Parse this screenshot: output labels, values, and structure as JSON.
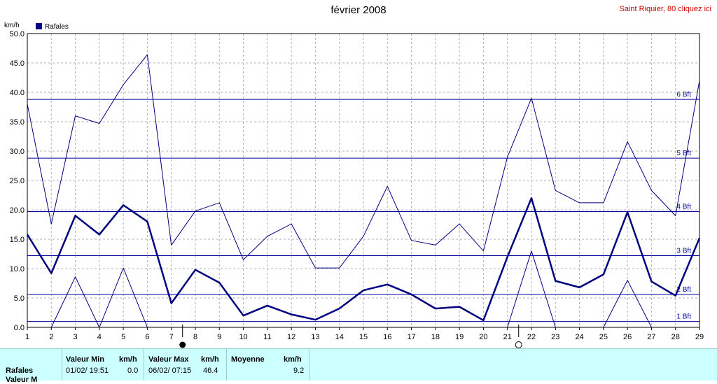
{
  "header": {
    "title": "février 2008",
    "station_link": "Saint Riquier, 80 cliquez ici"
  },
  "chart_data": {
    "type": "line",
    "ylabel": "km/h",
    "ylim": [
      0,
      50
    ],
    "yticks": [
      "0.0",
      "5.0",
      "10.0",
      "15.0",
      "20.0",
      "25.0",
      "30.0",
      "35.0",
      "40.0",
      "45.0",
      "50.0"
    ],
    "x": [
      1,
      2,
      3,
      4,
      5,
      6,
      7,
      8,
      9,
      10,
      11,
      12,
      13,
      14,
      15,
      16,
      17,
      18,
      19,
      20,
      21,
      22,
      23,
      24,
      25,
      26,
      27,
      28,
      29
    ],
    "legend": {
      "label": "Rafales",
      "color": "#000080",
      "position": "top-left"
    },
    "grid": true,
    "series": [
      {
        "role": "max",
        "width": 1,
        "color": "#000080",
        "values": [
          38.0,
          17.6,
          36.0,
          34.7,
          41.3,
          46.4,
          14.0,
          19.8,
          21.2,
          11.5,
          15.5,
          17.6,
          10.1,
          10.1,
          15.5,
          24.0,
          14.8,
          14.0,
          17.6,
          13.0,
          29.0,
          39.0,
          23.3,
          21.2,
          21.2,
          31.6,
          23.3,
          19.0,
          42.0
        ]
      },
      {
        "role": "mean",
        "width": 2.5,
        "color": "#000080",
        "values": [
          15.8,
          9.2,
          19.0,
          15.8,
          20.8,
          18.0,
          4.1,
          9.8,
          7.6,
          2.0,
          3.7,
          2.2,
          1.3,
          3.2,
          6.3,
          7.3,
          5.6,
          3.2,
          3.5,
          1.2,
          12.0,
          22.0,
          7.9,
          6.8,
          9.0,
          19.6,
          7.8,
          5.4,
          15.2
        ]
      },
      {
        "role": "min",
        "width": 1,
        "color": "#000080",
        "values": [
          null,
          0.0,
          8.6,
          0.0,
          10.1,
          0.0,
          null,
          null,
          null,
          null,
          null,
          null,
          null,
          null,
          null,
          null,
          null,
          null,
          null,
          null,
          0.0,
          13.0,
          0.0,
          null,
          0.0,
          8.0,
          0.0,
          null,
          null
        ]
      }
    ],
    "beaufort": [
      {
        "label": "1 Bft",
        "value": 1.0
      },
      {
        "label": "2 Bft",
        "value": 5.6
      },
      {
        "label": "3 Bft",
        "value": 12.2
      },
      {
        "label": "4 Bft",
        "value": 19.7
      },
      {
        "label": "5 Bft",
        "value": 28.8
      },
      {
        "label": "6 Bft",
        "value": 38.8
      }
    ],
    "moon_phases": [
      {
        "day": 7,
        "phase": "new-moon"
      },
      {
        "day": 21,
        "phase": "full-moon"
      }
    ]
  },
  "stats": {
    "row_label": "Rafales",
    "row_label_2": "Valeur M",
    "min_header": "Valeur Min",
    "max_header": "Valeur Max",
    "mean_header": "Moyenne",
    "unit": "km/h",
    "min_date": "01/02/  19:51",
    "min_value": "0.0",
    "max_date": "06/02/  07:15",
    "max_value": "46.4",
    "mean_value": "9.2"
  }
}
